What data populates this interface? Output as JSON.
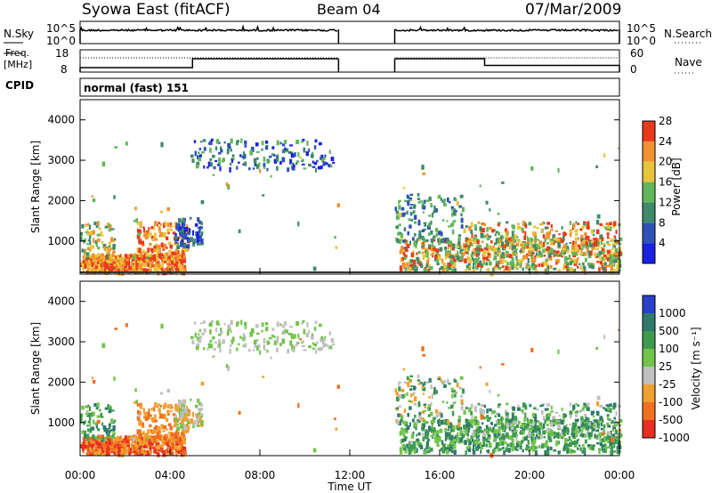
{
  "header": {
    "station": "Syowa East (fitACF)",
    "beam": "Beam 04",
    "date": "07/Mar/2009"
  },
  "labels": {
    "nsky": "N.Sky",
    "nsearch": "N.Search",
    "freq_line1": "Freq.",
    "freq_line2": "[MHz]",
    "nave": "Nave",
    "cpid": "CPID",
    "cpid_value": "normal (fast) 151",
    "slant_range": "Slant Range [km]",
    "time_axis": "Time UT",
    "power_label": "Power [dB]",
    "velocity_label": "Velocity [m s⁻¹]"
  },
  "noise_axis": {
    "left_ticks": [
      "10^5",
      "10^0"
    ],
    "right_ticks": [
      "10^5",
      "10^0"
    ]
  },
  "freq_axis": {
    "left_ticks": [
      "18",
      "8"
    ],
    "right_ticks": [
      "60",
      "0"
    ]
  },
  "chart_data": {
    "type": "heatmap",
    "x_ticks": [
      "00:00",
      "04:00",
      "08:00",
      "12:00",
      "16:00",
      "20:00",
      "00:00"
    ],
    "x_range_hours": [
      0,
      24
    ],
    "y_ticks": [
      "1000",
      "2000",
      "3000",
      "4000"
    ],
    "y_range_km": [
      180,
      4500
    ],
    "data_gap_hours": [
      11.5,
      14.0
    ],
    "frequency_series": [
      {
        "name": "freq",
        "points": [
          [
            0,
            10
          ],
          [
            5,
            10
          ],
          [
            5,
            14
          ],
          [
            11.5,
            14
          ],
          [
            14,
            14
          ],
          [
            18,
            14
          ],
          [
            18,
            11
          ],
          [
            24,
            11
          ]
        ]
      }
    ],
    "cpid": 151,
    "power_scale": {
      "label": "Power [dB]",
      "ticks": [
        "4",
        "8",
        "12",
        "16",
        "20",
        "24",
        "28"
      ],
      "colors": [
        "#1a20e0",
        "#2f52b8",
        "#3e8a6a",
        "#62b75a",
        "#e8c43a",
        "#f09230",
        "#e83a1a"
      ]
    },
    "velocity_scale": {
      "label": "Velocity [m s⁻¹]",
      "ticks": [
        "1000",
        "500",
        "100",
        "25",
        "-25",
        "-100",
        "-500",
        "-1000"
      ],
      "colors": [
        "#2a40c8",
        "#2f7a6a",
        "#3f9a50",
        "#72c44a",
        "#c0c0c0",
        "#f0a030",
        "#f07020",
        "#e83020"
      ]
    }
  }
}
